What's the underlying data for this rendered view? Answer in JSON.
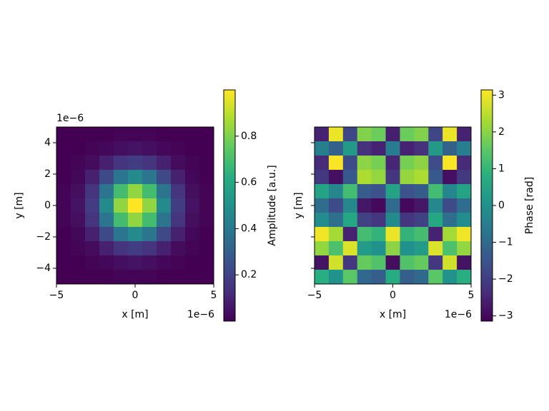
{
  "chart_data": [
    {
      "type": "heatmap",
      "xlabel": "x [m]",
      "ylabel": "y [m]",
      "x_offset_text": "1e−6",
      "y_offset_text": "1e−6",
      "xlim": [
        -5,
        5
      ],
      "ylim": [
        -5,
        5
      ],
      "xticks": [
        {
          "value": -5,
          "label": "−5"
        },
        0,
        5
      ],
      "yticks": [
        {
          "value": -4,
          "label": "−4"
        },
        {
          "value": -2,
          "label": "−2"
        },
        0,
        2,
        4
      ],
      "show_ytick_labels": true,
      "z": [
        [
          0,
          0,
          0,
          0,
          0.01,
          0.01,
          0.01,
          0,
          0,
          0,
          0
        ],
        [
          0,
          0,
          0.01,
          0.02,
          0.04,
          0.05,
          0.04,
          0.02,
          0.01,
          0,
          0
        ],
        [
          0,
          0.01,
          0.03,
          0.09,
          0.15,
          0.18,
          0.15,
          0.09,
          0.03,
          0.01,
          0
        ],
        [
          0,
          0.02,
          0.09,
          0.22,
          0.39,
          0.47,
          0.39,
          0.22,
          0.09,
          0.02,
          0
        ],
        [
          0.01,
          0.04,
          0.15,
          0.39,
          0.69,
          0.83,
          0.69,
          0.39,
          0.15,
          0.04,
          0.01
        ],
        [
          0.01,
          0.05,
          0.18,
          0.47,
          0.83,
          1,
          0.83,
          0.47,
          0.18,
          0.05,
          0.01
        ],
        [
          0.01,
          0.04,
          0.15,
          0.39,
          0.69,
          0.83,
          0.69,
          0.39,
          0.15,
          0.04,
          0.01
        ],
        [
          0,
          0.02,
          0.09,
          0.22,
          0.39,
          0.47,
          0.39,
          0.22,
          0.09,
          0.02,
          0
        ],
        [
          0,
          0.01,
          0.03,
          0.09,
          0.15,
          0.18,
          0.15,
          0.09,
          0.03,
          0.01,
          0
        ],
        [
          0,
          0,
          0.01,
          0.02,
          0.04,
          0.05,
          0.04,
          0.02,
          0.01,
          0,
          0
        ],
        [
          0,
          0,
          0,
          0,
          0.01,
          0.01,
          0.01,
          0,
          0,
          0,
          0
        ]
      ],
      "colorbar": {
        "label": "Amplitude [a.u.]",
        "clim": [
          0,
          1
        ],
        "ticks": [
          0.2,
          0.4,
          0.6,
          0.8
        ]
      }
    },
    {
      "type": "heatmap",
      "xlabel": "x [m]",
      "ylabel": "y [m]",
      "x_offset_text": "1e−6",
      "xlim": [
        -5,
        5
      ],
      "ylim": [
        -5,
        5
      ],
      "xticks": [
        {
          "value": -5,
          "label": "−5"
        },
        0,
        5
      ],
      "yticks": [
        -4,
        -2,
        0,
        2,
        4
      ],
      "show_ytick_labels": false,
      "z": [
        [
          -2.54,
          2.97,
          -1.82,
          1.92,
          1.68,
          -2.6,
          1.68,
          1.92,
          -1.82,
          2.97,
          -2.54
        ],
        [
          -0.46,
          -1.23,
          0.24,
          -2.28,
          -2.53,
          -0.53,
          -2.53,
          -2.28,
          0.24,
          -1.23,
          -0.46
        ],
        [
          -2.41,
          3.09,
          -1.71,
          2.04,
          1.8,
          -2.48,
          1.8,
          2.04,
          -1.71,
          3.09,
          -2.41
        ],
        [
          -2.1,
          -2.87,
          -1.39,
          2.35,
          2.12,
          -2.15,
          2.12,
          2.35,
          -1.39,
          -2.87,
          -2.1
        ],
        [
          0.49,
          -0.28,
          1.19,
          -1.33,
          -1.58,
          0.43,
          -1.58,
          -1.33,
          1.19,
          -0.28,
          0.49
        ],
        [
          -0.94,
          -1.71,
          -0.22,
          -2.75,
          -3.0,
          -0.99,
          -3.0,
          -2.75,
          -0.22,
          -1.71,
          -0.94
        ],
        [
          -0.1,
          -0.87,
          0.6,
          -1.92,
          -2.16,
          -0.16,
          -2.16,
          -1.92,
          0.6,
          -0.87,
          -0.1
        ],
        [
          3.02,
          2.26,
          -2.55,
          1.2,
          0.94,
          2.96,
          0.94,
          1.2,
          -2.55,
          2.26,
          3.02
        ],
        [
          2.09,
          1.31,
          2.8,
          0.27,
          0.01,
          2.03,
          0.01,
          0.27,
          2.8,
          1.31,
          2.09
        ],
        [
          -2.82,
          2.69,
          -2.12,
          1.63,
          1.38,
          -2.89,
          1.38,
          1.63,
          -2.12,
          2.69,
          -2.82
        ],
        [
          0.79,
          0.02,
          1.5,
          -1.03,
          -1.28,
          0.72,
          -1.28,
          -1.03,
          1.5,
          0.02,
          0.79
        ]
      ],
      "colorbar": {
        "label": "Phase [rad]",
        "clim": [
          -3.1416,
          3.1416
        ],
        "ticks": [
          {
            "value": -3,
            "label": "−3"
          },
          {
            "value": -2,
            "label": "−2"
          },
          {
            "value": -1,
            "label": "−1"
          },
          0,
          1,
          2,
          3
        ]
      }
    }
  ]
}
